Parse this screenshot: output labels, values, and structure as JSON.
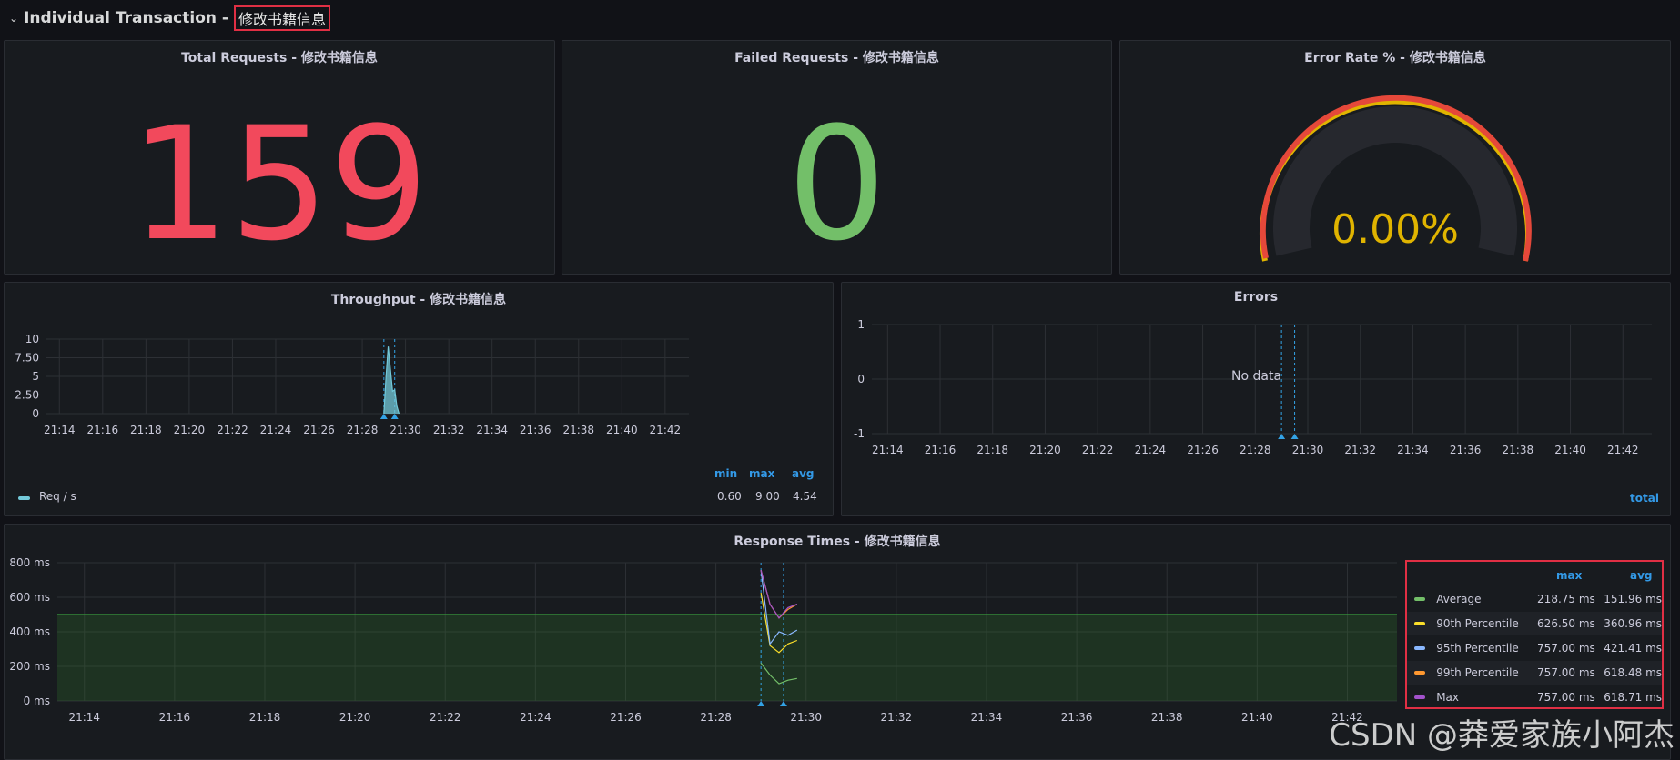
{
  "row": {
    "title": "Individual Transaction - ",
    "highlight": "修改书籍信息"
  },
  "panels": {
    "total": {
      "title": "Total Requests - 修改书籍信息",
      "value": "159",
      "color": "#f2495c"
    },
    "failed": {
      "title": "Failed Requests - 修改书籍信息",
      "value": "0",
      "color": "#73bf69"
    },
    "error_rate": {
      "title": "Error Rate % - 修改书籍信息",
      "value": "0.00%",
      "color": "#e0b400",
      "gauge_fraction": 0.0
    },
    "throughput": {
      "title": "Throughput - 修改书籍信息",
      "legend": {
        "headers": [
          "min",
          "max",
          "avg"
        ],
        "series": "Req / s",
        "values": [
          "0.60",
          "9.00",
          "4.54"
        ]
      }
    },
    "errors": {
      "title": "Errors",
      "no_data": "No data",
      "legend_header": "total"
    },
    "response": {
      "title": "Response Times - 修改书籍信息",
      "legend": {
        "headers": [
          "max",
          "avg"
        ],
        "rows": [
          {
            "name": "Average",
            "max": "218.75 ms",
            "avg": "151.96 ms",
            "color": "#73bf69"
          },
          {
            "name": "90th Percentile",
            "max": "626.50 ms",
            "avg": "360.96 ms",
            "color": "#fade2a"
          },
          {
            "name": "95th Percentile",
            "max": "757.00 ms",
            "avg": "421.41 ms",
            "color": "#8ab8ff"
          },
          {
            "name": "99th Percentile",
            "max": "757.00 ms",
            "avg": "618.48 ms",
            "color": "#ff9830"
          },
          {
            "name": "Max",
            "max": "757.00 ms",
            "avg": "618.71 ms",
            "color": "#a352cc"
          }
        ]
      }
    }
  },
  "chart_data": [
    {
      "type": "area",
      "title": "Throughput - 修改书籍信息",
      "x_ticks": [
        "21:14",
        "21:16",
        "21:18",
        "21:20",
        "21:22",
        "21:24",
        "21:26",
        "21:28",
        "21:30",
        "21:32",
        "21:34",
        "21:36",
        "21:38",
        "21:40",
        "21:42"
      ],
      "y_ticks": [
        "0",
        "2.50",
        "5",
        "7.50",
        "10"
      ],
      "ylim": [
        0,
        10
      ],
      "series": [
        {
          "name": "Req / s",
          "color": "#73c9d9",
          "x": [
            "21:29.0",
            "21:29.1",
            "21:29.2",
            "21:29.3",
            "21:29.4",
            "21:29.5",
            "21:29.6",
            "21:29.7"
          ],
          "values": [
            0,
            5.0,
            9.0,
            6.0,
            3.0,
            3.2,
            1.0,
            0
          ]
        }
      ]
    },
    {
      "type": "line",
      "title": "Errors",
      "x_ticks": [
        "21:14",
        "21:16",
        "21:18",
        "21:20",
        "21:22",
        "21:24",
        "21:26",
        "21:28",
        "21:30",
        "21:32",
        "21:34",
        "21:36",
        "21:38",
        "21:40",
        "21:42"
      ],
      "y_ticks": [
        "-1",
        "0",
        "1"
      ],
      "ylim": [
        -1,
        1
      ],
      "series": []
    },
    {
      "type": "line",
      "title": "Response Times - 修改书籍信息",
      "x_ticks": [
        "21:14",
        "21:16",
        "21:18",
        "21:20",
        "21:22",
        "21:24",
        "21:26",
        "21:28",
        "21:30",
        "21:32",
        "21:34",
        "21:36",
        "21:38",
        "21:40",
        "21:42"
      ],
      "y_ticks": [
        "0 ms",
        "200 ms",
        "400 ms",
        "600 ms",
        "800 ms"
      ],
      "ylim": [
        0,
        800
      ],
      "threshold": 500,
      "series": [
        {
          "name": "Average",
          "color": "#73bf69",
          "x": [
            "21:29.0",
            "21:29.2",
            "21:29.4",
            "21:29.6",
            "21:29.8"
          ],
          "values": [
            219,
            150,
            100,
            120,
            130
          ]
        },
        {
          "name": "90th Percentile",
          "color": "#fade2a",
          "x": [
            "21:29.0",
            "21:29.2",
            "21:29.4",
            "21:29.6",
            "21:29.8"
          ],
          "values": [
            626,
            320,
            280,
            330,
            350
          ]
        },
        {
          "name": "95th Percentile",
          "color": "#8ab8ff",
          "x": [
            "21:29.0",
            "21:29.2",
            "21:29.4",
            "21:29.6",
            "21:29.8"
          ],
          "values": [
            757,
            330,
            400,
            380,
            410
          ]
        },
        {
          "name": "99th Percentile",
          "color": "#ff9830",
          "x": [
            "21:29.0",
            "21:29.2",
            "21:29.4",
            "21:29.6",
            "21:29.8"
          ],
          "values": [
            757,
            560,
            480,
            530,
            560
          ]
        },
        {
          "name": "Max",
          "color": "#a352cc",
          "x": [
            "21:29.0",
            "21:29.2",
            "21:29.4",
            "21:29.6",
            "21:29.8"
          ],
          "values": [
            757,
            560,
            480,
            540,
            560
          ]
        }
      ]
    }
  ],
  "watermark": "CSDN @莽爱家族小阿杰"
}
